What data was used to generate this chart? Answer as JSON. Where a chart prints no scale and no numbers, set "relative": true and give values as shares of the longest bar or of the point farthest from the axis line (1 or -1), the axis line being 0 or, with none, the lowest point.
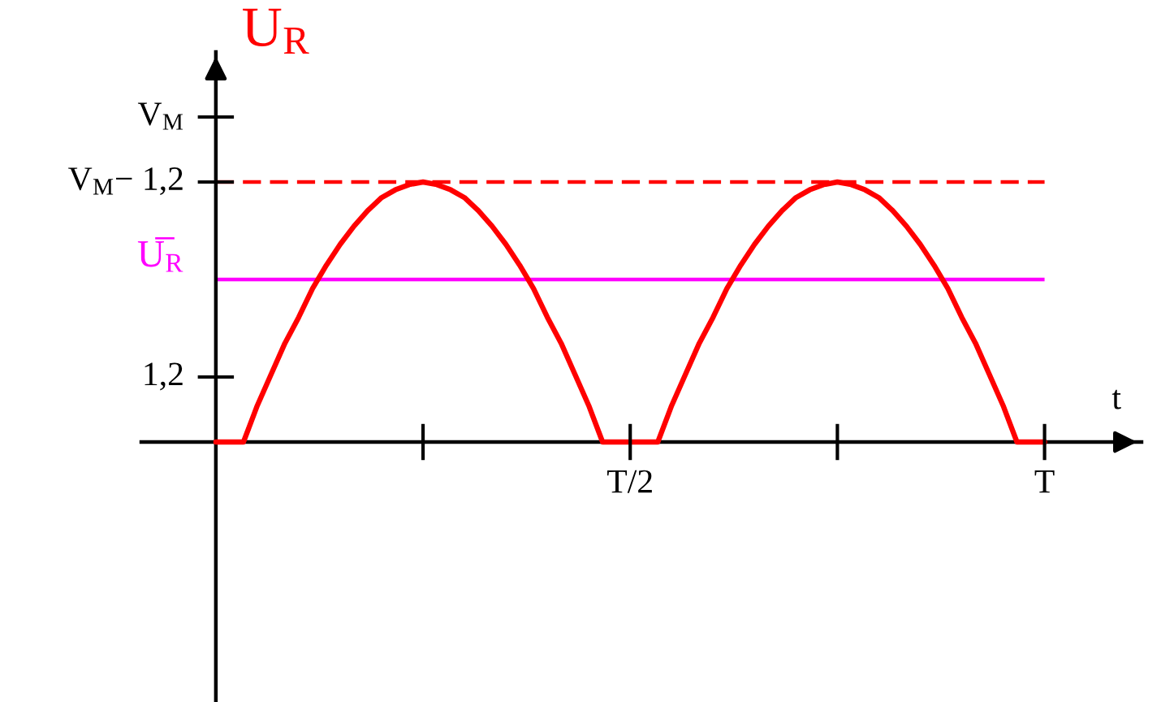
{
  "chart_data": {
    "type": "line",
    "relative": true,
    "ylabel": "U$_{R}$",
    "xlabel": "t",
    "categories": [
      null,
      null,
      null,
      null,
      null,
      null,
      null,
      null,
      null,
      null,
      null,
      null,
      null,
      null,
      null,
      null,
      null,
      null,
      null,
      null,
      null,
      null,
      null,
      null,
      null,
      null,
      null,
      null,
      null,
      null,
      "T/2",
      null,
      null,
      null,
      null,
      null,
      null,
      null,
      null,
      null,
      null,
      null,
      null,
      null,
      null,
      null,
      null,
      null,
      null,
      null,
      null,
      null,
      null,
      null,
      null,
      null,
      null,
      null,
      null,
      null,
      "T"
    ],
    "series": [
      {
        "color": "#ff0000",
        "values": [
          0,
          0,
          0,
          0.14,
          0.26,
          0.38,
          0.48,
          0.59,
          0.68,
          0.76,
          0.83,
          0.89,
          0.94,
          0.97,
          0.99,
          1.0,
          0.99,
          0.97,
          0.94,
          0.89,
          0.83,
          0.76,
          0.68,
          0.59,
          0.48,
          0.38,
          0.26,
          0.14,
          0,
          0,
          0,
          0,
          0,
          0.14,
          0.26,
          0.38,
          0.48,
          0.59,
          0.68,
          0.76,
          0.83,
          0.89,
          0.94,
          0.97,
          0.99,
          1.0,
          0.99,
          0.97,
          0.94,
          0.89,
          0.83,
          0.76,
          0.68,
          0.59,
          0.48,
          0.38,
          0.26,
          0.14,
          0,
          0,
          0
        ]
      }
    ],
    "ref_lines": [
      {
        "axis": "y",
        "value": 1.0,
        "color": "#ff0000",
        "line_style": "dashed"
      },
      {
        "axis": "y",
        "value": 0.625,
        "label": "U̅$_{R}$",
        "color": "#ff00ff"
      }
    ],
    "annotations": [
      "V$_{M}$",
      "V$_{M}$− 1,2",
      "1,2"
    ],
    "grid": false,
    "marker": "none",
    "line_style": "solid"
  }
}
